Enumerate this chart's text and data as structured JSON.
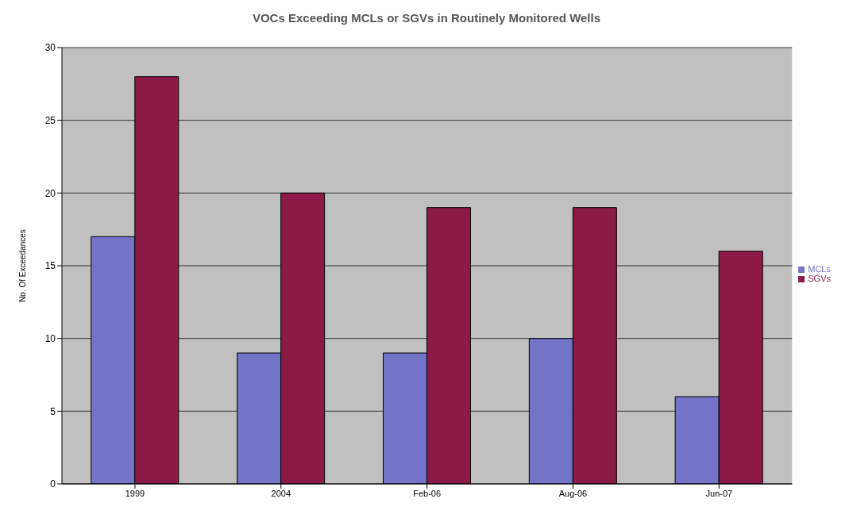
{
  "chart_data": {
    "type": "bar",
    "title": "VOCs Exceeding MCLs or SGVs in Routinely Monitored Wells",
    "ylabel": "No. Of Exceedances",
    "categories": [
      "1999",
      "2004",
      "Feb-06",
      "Aug-06",
      "Jun-07"
    ],
    "series": [
      {
        "name": "MCLs",
        "color": "#7373c8",
        "values": [
          17,
          9,
          9,
          10,
          6
        ]
      },
      {
        "name": "SGVs",
        "color": "#8c1a46",
        "values": [
          28,
          20,
          19,
          19,
          16
        ]
      }
    ],
    "ylim": [
      0,
      30
    ],
    "yticks": [
      0,
      5,
      10,
      15,
      20,
      25,
      30
    ],
    "grid": "y",
    "legend": "right"
  }
}
